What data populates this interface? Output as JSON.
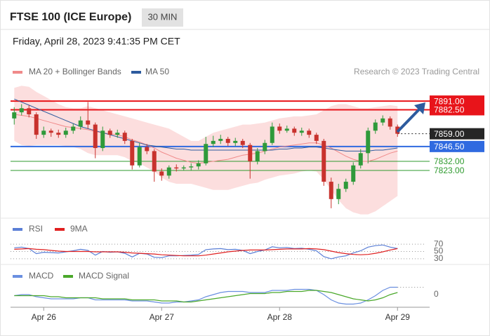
{
  "header": {
    "title": "FTSE 100 (ICE Europe)",
    "interval": "30 MIN",
    "timestamp": "Friday, April 28, 2023 9:41:35 PM CET"
  },
  "chart_data": [
    {
      "type": "candlestick",
      "source": "Research © 2023 Trading Central",
      "categories": [
        null,
        null,
        null,
        null,
        "Apr 26",
        null,
        null,
        null,
        null,
        null,
        null,
        null,
        null,
        null,
        null,
        null,
        null,
        null,
        null,
        null,
        "Apr 27",
        null,
        null,
        null,
        null,
        null,
        null,
        null,
        null,
        null,
        null,
        null,
        null,
        null,
        null,
        null,
        "Apr 28",
        null,
        null,
        null,
        null,
        null,
        null,
        null,
        null,
        null,
        null,
        null,
        null,
        null,
        null,
        null,
        "Apr 29"
      ],
      "open": [
        7874,
        7880,
        7884,
        7878,
        7858,
        7862,
        7860,
        7858,
        7862,
        7866,
        7872,
        7868,
        7845,
        7862,
        7858,
        7860,
        7852,
        7828,
        7846,
        7842,
        7822,
        7818,
        7826,
        7825,
        7826,
        7827,
        7830,
        7849,
        7852,
        7854,
        7850,
        7852,
        7848,
        7832,
        7842,
        7850,
        7866,
        7862,
        7864,
        7860,
        7862,
        7858,
        7852,
        7812,
        7795,
        7805,
        7812,
        7828,
        7840,
        7862,
        7870,
        7874,
        7866
      ],
      "high": [
        7885,
        7888,
        7887,
        7880,
        7866,
        7864,
        7863,
        7865,
        7869,
        7876,
        7890,
        7870,
        7866,
        7864,
        7863,
        7862,
        7854,
        7850,
        7849,
        7844,
        7825,
        7828,
        7829,
        7828,
        7830,
        7833,
        7856,
        7857,
        7858,
        7856,
        7855,
        7854,
        7850,
        7845,
        7853,
        7870,
        7869,
        7867,
        7866,
        7865,
        7864,
        7860,
        7854,
        7816,
        7810,
        7815,
        7831,
        7844,
        7865,
        7873,
        7877,
        7876,
        7868
      ],
      "low": [
        7868,
        7877,
        7875,
        7854,
        7855,
        7856,
        7855,
        7855,
        7859,
        7863,
        7864,
        7835,
        7842,
        7855,
        7855,
        7849,
        7824,
        7826,
        7839,
        7812,
        7813,
        7815,
        7822,
        7823,
        7823,
        7824,
        7828,
        7846,
        7849,
        7847,
        7847,
        7845,
        7815,
        7829,
        7839,
        7848,
        7859,
        7860,
        7857,
        7857,
        7855,
        7849,
        7808,
        7786,
        7790,
        7802,
        7809,
        7825,
        7830,
        7859,
        7867,
        7863,
        7856
      ],
      "close": [
        7880,
        7884,
        7878,
        7858,
        7862,
        7860,
        7858,
        7862,
        7866,
        7872,
        7868,
        7845,
        7862,
        7858,
        7860,
        7852,
        7828,
        7846,
        7842,
        7822,
        7818,
        7826,
        7825,
        7826,
        7827,
        7830,
        7849,
        7852,
        7854,
        7850,
        7852,
        7848,
        7832,
        7842,
        7850,
        7866,
        7862,
        7864,
        7860,
        7862,
        7858,
        7852,
        7812,
        7795,
        7805,
        7812,
        7828,
        7840,
        7862,
        7870,
        7874,
        7866,
        7859
      ],
      "up_color": "#2f9a3a",
      "down_color": "#c8322d",
      "series": [
        {
          "name": "MA 20 + Bollinger Bands",
          "color": "#f08a8a",
          "band_color": "#fbd6d6",
          "values": [
            7878,
            7877,
            7876,
            7874,
            7872,
            7870,
            7868,
            7866,
            7865,
            7864,
            7863,
            7861,
            7860,
            7859,
            7858,
            7856,
            7853,
            7851,
            7848,
            7845,
            7841,
            7838,
            7835,
            7833,
            7831,
            7830,
            7831,
            7832,
            7833,
            7834,
            7836,
            7838,
            7839,
            7840,
            7842,
            7844,
            7846,
            7847,
            7848,
            7849,
            7850,
            7850,
            7848,
            7845,
            7841,
            7837,
            7834,
            7832,
            7832,
            7834,
            7837,
            7840,
            7842
          ],
          "upper": [
            7904,
            7906,
            7905,
            7900,
            7896,
            7892,
            7888,
            7885,
            7884,
            7884,
            7886,
            7884,
            7882,
            7880,
            7878,
            7876,
            7874,
            7872,
            7870,
            7868,
            7866,
            7864,
            7860,
            7856,
            7852,
            7852,
            7856,
            7860,
            7862,
            7864,
            7866,
            7868,
            7868,
            7869,
            7870,
            7872,
            7874,
            7875,
            7876,
            7876,
            7877,
            7878,
            7882,
            7886,
            7888,
            7888,
            7886,
            7884,
            7884,
            7885,
            7886,
            7887,
            7886
          ],
          "lower": [
            7852,
            7848,
            7847,
            7848,
            7848,
            7848,
            7848,
            7847,
            7846,
            7844,
            7840,
            7838,
            7838,
            7838,
            7838,
            7836,
            7832,
            7830,
            7826,
            7822,
            7816,
            7812,
            7810,
            7810,
            7810,
            7808,
            7806,
            7804,
            7804,
            7804,
            7806,
            7808,
            7810,
            7811,
            7814,
            7816,
            7818,
            7819,
            7820,
            7822,
            7823,
            7822,
            7814,
            7804,
            7794,
            7786,
            7782,
            7780,
            7780,
            7783,
            7788,
            7793,
            7798
          ]
        },
        {
          "name": "MA 50",
          "color": "#2d5b9e",
          "values": [
            7893,
            7890,
            7887,
            7884,
            7881,
            7878,
            7875,
            7872,
            7869,
            7866,
            7864,
            7862,
            7860,
            7858,
            7856,
            7854,
            7852,
            7850,
            7848,
            7847,
            7846,
            7845,
            7844,
            7844,
            7843,
            7843,
            7843,
            7843,
            7843,
            7843,
            7843,
            7843,
            7843,
            7843,
            7843,
            7843,
            7844,
            7844,
            7845,
            7845,
            7846,
            7846,
            7845,
            7844,
            7843,
            7842,
            7842,
            7842,
            7842,
            7843,
            7843,
            7844,
            7845
          ]
        }
      ],
      "levels": [
        {
          "value": 7891,
          "label": "7891.00",
          "color": "#e8141a",
          "boxed": true,
          "dotted": false
        },
        {
          "value": 7882.5,
          "label": "7882.50",
          "color": "#e8141a",
          "boxed": true,
          "dotted": false
        },
        {
          "value": 7859,
          "label": "7859.00",
          "color": "#262626",
          "boxed": true,
          "dotted": true
        },
        {
          "value": 7846.5,
          "label": "7846.50",
          "color": "#2f6ae0",
          "boxed": true,
          "dotted": false
        },
        {
          "value": 7832,
          "label": "7832.00",
          "color": "#2e9a2e",
          "boxed": false,
          "dotted": false
        },
        {
          "value": 7823,
          "label": "7823.00",
          "color": "#2e9a2e",
          "boxed": false,
          "dotted": false
        }
      ],
      "ylim": [
        7777,
        7911
      ]
    },
    {
      "type": "line",
      "grid": true,
      "series": [
        {
          "name": "RSI",
          "color": "#5b7fd6",
          "values": [
            60,
            62,
            58,
            44,
            48,
            47,
            46,
            49,
            52,
            56,
            53,
            40,
            50,
            48,
            49,
            45,
            35,
            45,
            43,
            34,
            33,
            38,
            38,
            39,
            40,
            42,
            55,
            57,
            58,
            55,
            56,
            53,
            44,
            50,
            54,
            63,
            60,
            61,
            58,
            59,
            56,
            52,
            36,
            30,
            35,
            38,
            46,
            52,
            62,
            66,
            68,
            62,
            58
          ]
        },
        {
          "name": "9MA",
          "color": "#e02020",
          "values": [
            56,
            57,
            58,
            56,
            55,
            53,
            51,
            50,
            50,
            50,
            50,
            49,
            49,
            49,
            49,
            48,
            46,
            45,
            44,
            43,
            41,
            40,
            39,
            38,
            38,
            38,
            40,
            43,
            46,
            49,
            51,
            53,
            54,
            54,
            54,
            55,
            56,
            57,
            57,
            57,
            58,
            57,
            55,
            51,
            47,
            44,
            42,
            41,
            42,
            45,
            49,
            54,
            58
          ]
        }
      ],
      "ylim": [
        24,
        78
      ],
      "yticks": [
        70,
        50,
        30
      ]
    },
    {
      "type": "line",
      "grid": false,
      "series": [
        {
          "name": "MACD",
          "color": "#6a8fe0",
          "values": [
            -1,
            0,
            0,
            -2,
            -3,
            -4,
            -4,
            -4,
            -4,
            -3,
            -3,
            -5,
            -5,
            -5,
            -5,
            -5,
            -6,
            -6,
            -6,
            -7,
            -8,
            -8,
            -7,
            -7,
            -6,
            -5,
            -2,
            0,
            2,
            3,
            3,
            3,
            2,
            2,
            2,
            4,
            4,
            4,
            5,
            5,
            5,
            4,
            0,
            -5,
            -8,
            -9,
            -9,
            -8,
            -5,
            -1,
            4,
            7,
            7
          ]
        },
        {
          "name": "MACD Signal",
          "color": "#4aa82a",
          "values": [
            -1,
            -1,
            -1,
            -1,
            -1,
            -2,
            -2,
            -3,
            -3,
            -3,
            -3,
            -3,
            -4,
            -4,
            -4,
            -4,
            -5,
            -5,
            -5,
            -5,
            -6,
            -6,
            -6,
            -7,
            -7,
            -6,
            -5,
            -4,
            -3,
            -2,
            -1,
            0,
            1,
            1,
            1,
            2,
            2,
            3,
            3,
            3,
            4,
            4,
            3,
            2,
            0,
            -2,
            -4,
            -5,
            -6,
            -5,
            -3,
            0,
            2
          ]
        }
      ],
      "ylim": [
        -12,
        10
      ],
      "yticks": [
        0
      ]
    }
  ]
}
